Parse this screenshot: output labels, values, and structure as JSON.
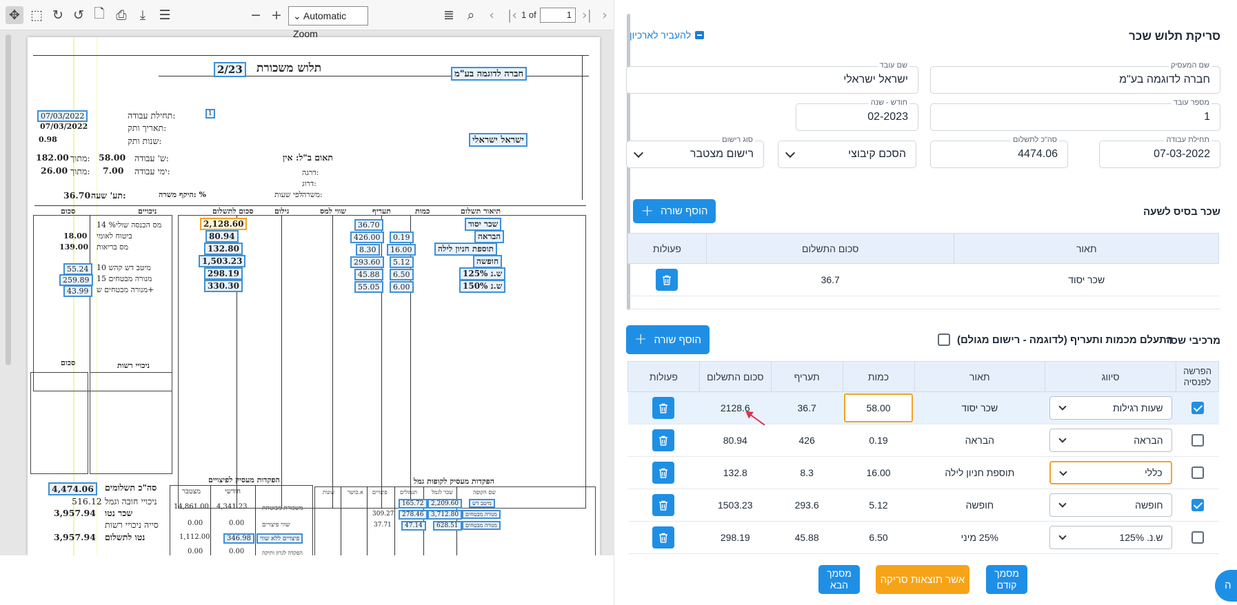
{
  "viewer": {
    "zoom": "Automatic Zoom",
    "page_current": "1",
    "page_of": "1 of",
    "icons": [
      "move-icon",
      "select-icon",
      "rotate-cw-icon",
      "rotate-ccw-icon",
      "file-icon",
      "print-icon",
      "download-icon",
      "menu-icon",
      "zoom-out-icon",
      "zoom-in-icon",
      "outline-icon",
      "search-icon",
      "prev-icon",
      "first-icon",
      "next-icon",
      "last-icon"
    ]
  },
  "payslip": {
    "title": "תלוש משכורת",
    "period": "2/23",
    "company": "חברה לדוגמה בע\"מ",
    "employee": "ישראל ישראלי",
    "start_date": "07/03/2022",
    "start_label": "תחילת עבודה:",
    "seniority_date": "07/03/2022",
    "seniority_label": "תאריך ותק:",
    "seniority_years_label": "שנות ותק:",
    "seniority_years": "0.98",
    "badge": "1",
    "hours_label": "ש' עבודה:",
    "hours": "58.00",
    "hours_of_label": "מתוך:",
    "hours_of": "182.00",
    "days_label": "ימי עבודה:",
    "days": "7.00",
    "days_of_label": "מתוך:",
    "days_of": "26.00",
    "rate_label": "תע' שעה:",
    "rate": "36.70",
    "position_pct": "היקף משרה: %",
    "coord_label": "תאום ב\"ל: אין",
    "grade_label": "דרגה:",
    "level_label": "דרוג:",
    "job_label": "משרה:",
    "job_value": "לפי שעות",
    "col_desc": "תיאור תשלום",
    "col_qty": "כמות",
    "col_rate": "תעריף",
    "col_value": "שווי למס",
    "col_grossup": "גילום",
    "col_amount": "סכום לתשלום",
    "col_deduct": "ניכויים",
    "col_sum": "סכום",
    "pay_rows": [
      {
        "desc": "שכר יסוד",
        "qty": "",
        "rate": "36.70",
        "amount": "2,128.60"
      },
      {
        "desc": "הבראה",
        "qty": "0.19",
        "rate": "426.00",
        "amount": "80.94"
      },
      {
        "desc": "תוספת חניון לילה",
        "qty": "16.00",
        "rate": "8.30",
        "amount": "132.80"
      },
      {
        "desc": "חופשה",
        "qty": "5.12",
        "rate": "293.60",
        "amount": "1,503.23"
      },
      {
        "desc": "ש.נ 125%",
        "qty": "6.50",
        "rate": "45.88",
        "amount": "298.19"
      },
      {
        "desc": "ש.נ 150%",
        "qty": "6.00",
        "rate": "55.05",
        "amount": "330.30"
      }
    ],
    "deductions": [
      {
        "label": "מס הכנסה שולי% 14",
        "value": ""
      },
      {
        "label": "ביטוח לאומי",
        "value": "18.00"
      },
      {
        "label": "מס בריאות",
        "value": "139.00"
      },
      {
        "label": "מיטב דש קהש 10",
        "value": "55.24"
      },
      {
        "label": "מנורה מבטחים 15",
        "value": "259.89"
      },
      {
        "label": "מנורה מבטחים ש+",
        "value": "43.99"
      }
    ],
    "voluntary_label": "ניכויי רשות",
    "voluntary_sum": "סכום",
    "total_payments_label": "סה\"כ תשלומים",
    "total_payments": "4,474.06",
    "mandatory_label": "ניכויי חובה וגמל",
    "mandatory": "516.12",
    "net_label": "שכר נטו",
    "net": "3,957.94",
    "voluntary_total_label": "סייה ניכויי רשות",
    "net_pay_label": "נטו לתשלום",
    "net_pay": "3,957.94",
    "sev_title": "הפקדות מעסיק לפיצויים",
    "sev_cols": [
      "מצטבר",
      "חודשי"
    ],
    "sev_rows": [
      {
        "label": "משכורת מבוטחת",
        "monthly": "4,341.23",
        "acc": "14,861.00"
      },
      {
        "label": "שווי פיצויים",
        "monthly": "0.00",
        "acc": "0.00"
      },
      {
        "label": "פיצויים ללא שווי",
        "monthly": "346.98",
        "acc": "1,112.00"
      },
      {
        "label": "הפקדה לגרון ותיקה",
        "monthly": "0.00",
        "acc": "0.00"
      }
    ],
    "fund_title": "הפקדות מעסיק לקופות גמל",
    "fund_cols": [
      "שם הקופה",
      "שכר לגמל",
      "תגמולים",
      "פיצויים",
      "א.כושר",
      "שונות"
    ],
    "fund_rows": [
      {
        "name": "מיטב דש",
        "wage": "2,209.60",
        "tag": "165.72",
        "pitz": ""
      },
      {
        "name": "מנורה מבטחים",
        "wage": "3,712.80",
        "tag": "278.46",
        "pitz": "309.27"
      },
      {
        "name": "מנורה מבטחים",
        "wage": "628.51",
        "tag": "47.14",
        "pitz": "37.71"
      }
    ]
  },
  "form": {
    "title": "סריקת תלוש שכר",
    "archive": "להעביר לארכיון",
    "employer_label": "שם המעסיק",
    "employer": "חברה לדוגמה בע\"מ",
    "employee_label": "שם עובד",
    "employee": "ישראל ישראלי",
    "emp_no_label": "מספר עובד",
    "emp_no": "1",
    "month_label": "חודש - שנה",
    "month": "02-2023",
    "start_label": "תחילת עבודה",
    "start": "07-03-2022",
    "total_label": "סה\"כ לתשלום",
    "total": "4474.06",
    "agreement_label": "",
    "agreement": "הסכם קיבוצי",
    "reg_label": "סוג רישום",
    "reg": "רישום מצטבר"
  },
  "hourly": {
    "title": "שכר בסיס לשעה",
    "add": "הוסף שורה",
    "cols": [
      "תאור",
      "סכום התשלום",
      "פעולות"
    ],
    "rows": [
      {
        "desc": "שכר יסוד",
        "amount": "36.7"
      }
    ]
  },
  "components": {
    "title": "מרכיבי שכר",
    "ignore_label": "התעלם מכמות ותעריף (לדוגמה - רישום מגולם)",
    "add": "הוסף שורה",
    "cols": [
      "הפרשה לפנסיה",
      "סיווג",
      "תאור",
      "כמות",
      "תעריף",
      "סכום התשלום",
      "פעולות"
    ],
    "rows": [
      {
        "pension": true,
        "type": "שעות רגילות",
        "desc": "שכר יסוד",
        "qty": "58.00",
        "rate": "36.7",
        "amount": "2128.6"
      },
      {
        "pension": false,
        "type": "הבראה",
        "desc": "הבראה",
        "qty": "0.19",
        "rate": "426",
        "amount": "80.94"
      },
      {
        "pension": false,
        "type": "כללי",
        "desc": "תוספת חניון לילה",
        "qty": "16.00",
        "rate": "8.3",
        "amount": "132.8"
      },
      {
        "pension": true,
        "type": "חופשה",
        "desc": "חופשה",
        "qty": "5.12",
        "rate": "293.6",
        "amount": "1503.23"
      },
      {
        "pension": false,
        "type": "ש.נ. 125%",
        "desc": "25% מיני",
        "qty": "6.50",
        "rate": "45.88",
        "amount": "298.19"
      }
    ]
  },
  "footer": {
    "prev": "מסמך קודם",
    "confirm": "אשר תוצאות סריקה",
    "next": "מסמך הבא",
    "fab": "ה"
  }
}
